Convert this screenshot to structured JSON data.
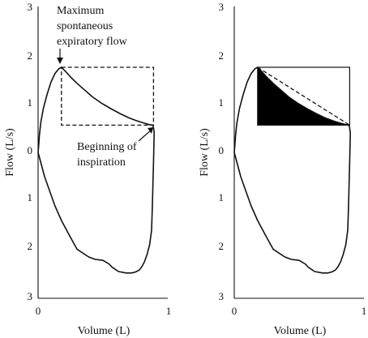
{
  "chart_data": [
    {
      "type": "line",
      "title": "",
      "xlabel": "Volume (L)",
      "ylabel": "Flow (L/s)",
      "xlim": [
        0,
        1
      ],
      "ylim": [
        -3,
        3
      ],
      "x_ticks": [
        "0",
        "1"
      ],
      "y_ticks": [
        "3",
        "2",
        "1",
        "0",
        "1",
        "2",
        "3"
      ],
      "series": [
        {
          "role": "flow-volume-loop",
          "x": [
            0.0,
            0.005,
            0.01,
            0.02,
            0.04,
            0.07,
            0.1,
            0.13,
            0.16,
            0.18,
            0.21,
            0.25,
            0.3,
            0.36,
            0.42,
            0.49,
            0.56,
            0.63,
            0.7,
            0.76,
            0.82,
            0.86,
            0.885,
            0.89,
            0.895,
            0.89,
            0.885,
            0.88,
            0.875,
            0.86,
            0.84,
            0.82,
            0.8,
            0.78,
            0.75,
            0.72,
            0.68,
            0.62,
            0.57,
            0.55,
            0.5,
            0.44,
            0.39,
            0.3,
            0.24,
            0.18,
            0.13,
            0.09,
            0.05,
            0.02,
            0.005,
            0.0
          ],
          "y": [
            0.0,
            0.15,
            0.35,
            0.6,
            0.9,
            1.2,
            1.45,
            1.62,
            1.72,
            1.75,
            1.67,
            1.55,
            1.42,
            1.28,
            1.14,
            1.01,
            0.9,
            0.8,
            0.71,
            0.65,
            0.6,
            0.57,
            0.56,
            0.5,
            0.4,
            -0.2,
            -0.7,
            -1.2,
            -1.6,
            -1.9,
            -2.1,
            -2.25,
            -2.35,
            -2.42,
            -2.46,
            -2.48,
            -2.48,
            -2.45,
            -2.36,
            -2.3,
            -2.22,
            -2.2,
            -2.15,
            -1.99,
            -1.7,
            -1.4,
            -1.1,
            -0.8,
            -0.5,
            -0.2,
            -0.05,
            0.0
          ]
        }
      ],
      "box": {
        "x": [
          0.18,
          0.89
        ],
        "y": [
          0.56,
          1.75
        ],
        "style": "dashed"
      },
      "annotations": [
        {
          "id": "maximum",
          "text_lines": [
            "Maximum",
            "spontaneous",
            "expiratory flow"
          ],
          "points_to": [
            0.18,
            1.75
          ]
        },
        {
          "id": "inspiration",
          "text_lines": [
            "Beginning of",
            "inspiration"
          ],
          "points_to": [
            0.89,
            0.56
          ]
        }
      ]
    },
    {
      "type": "line",
      "title": "",
      "xlabel": "Volume (L)",
      "ylabel": "Flow (L/s)",
      "xlim": [
        0,
        1
      ],
      "ylim": [
        -3,
        3
      ],
      "x_ticks": [
        "0",
        "1"
      ],
      "y_ticks": [
        "3",
        "2",
        "1",
        "0",
        "1",
        "2",
        "3"
      ],
      "series": [
        {
          "role": "flow-volume-loop",
          "x": [
            0.0,
            0.005,
            0.01,
            0.02,
            0.04,
            0.07,
            0.1,
            0.13,
            0.16,
            0.18,
            0.21,
            0.25,
            0.3,
            0.36,
            0.42,
            0.49,
            0.56,
            0.63,
            0.7,
            0.76,
            0.82,
            0.86,
            0.885,
            0.89,
            0.895,
            0.89,
            0.885,
            0.88,
            0.875,
            0.86,
            0.84,
            0.82,
            0.8,
            0.78,
            0.75,
            0.72,
            0.68,
            0.62,
            0.57,
            0.55,
            0.5,
            0.44,
            0.39,
            0.3,
            0.24,
            0.18,
            0.13,
            0.09,
            0.05,
            0.02,
            0.005,
            0.0
          ],
          "y": [
            0.0,
            0.15,
            0.35,
            0.6,
            0.9,
            1.2,
            1.45,
            1.62,
            1.72,
            1.75,
            1.67,
            1.55,
            1.42,
            1.28,
            1.14,
            1.01,
            0.9,
            0.8,
            0.71,
            0.65,
            0.6,
            0.57,
            0.56,
            0.5,
            0.4,
            -0.2,
            -0.7,
            -1.2,
            -1.6,
            -1.9,
            -2.1,
            -2.25,
            -2.35,
            -2.42,
            -2.46,
            -2.48,
            -2.48,
            -2.45,
            -2.36,
            -2.3,
            -2.22,
            -2.2,
            -2.15,
            -1.99,
            -1.7,
            -1.4,
            -1.1,
            -0.8,
            -0.5,
            -0.2,
            -0.05,
            0.0
          ]
        }
      ],
      "box": {
        "x": [
          0.18,
          0.89
        ],
        "y": [
          0.56,
          1.75
        ],
        "style": "solid"
      },
      "diagonal": {
        "x": [
          0.18,
          0.89
        ],
        "y": [
          1.75,
          0.56
        ],
        "style": "dashed"
      },
      "filled_region": {
        "color": "#000000",
        "description_for_render": "area between box bottom and descending curve"
      }
    }
  ]
}
